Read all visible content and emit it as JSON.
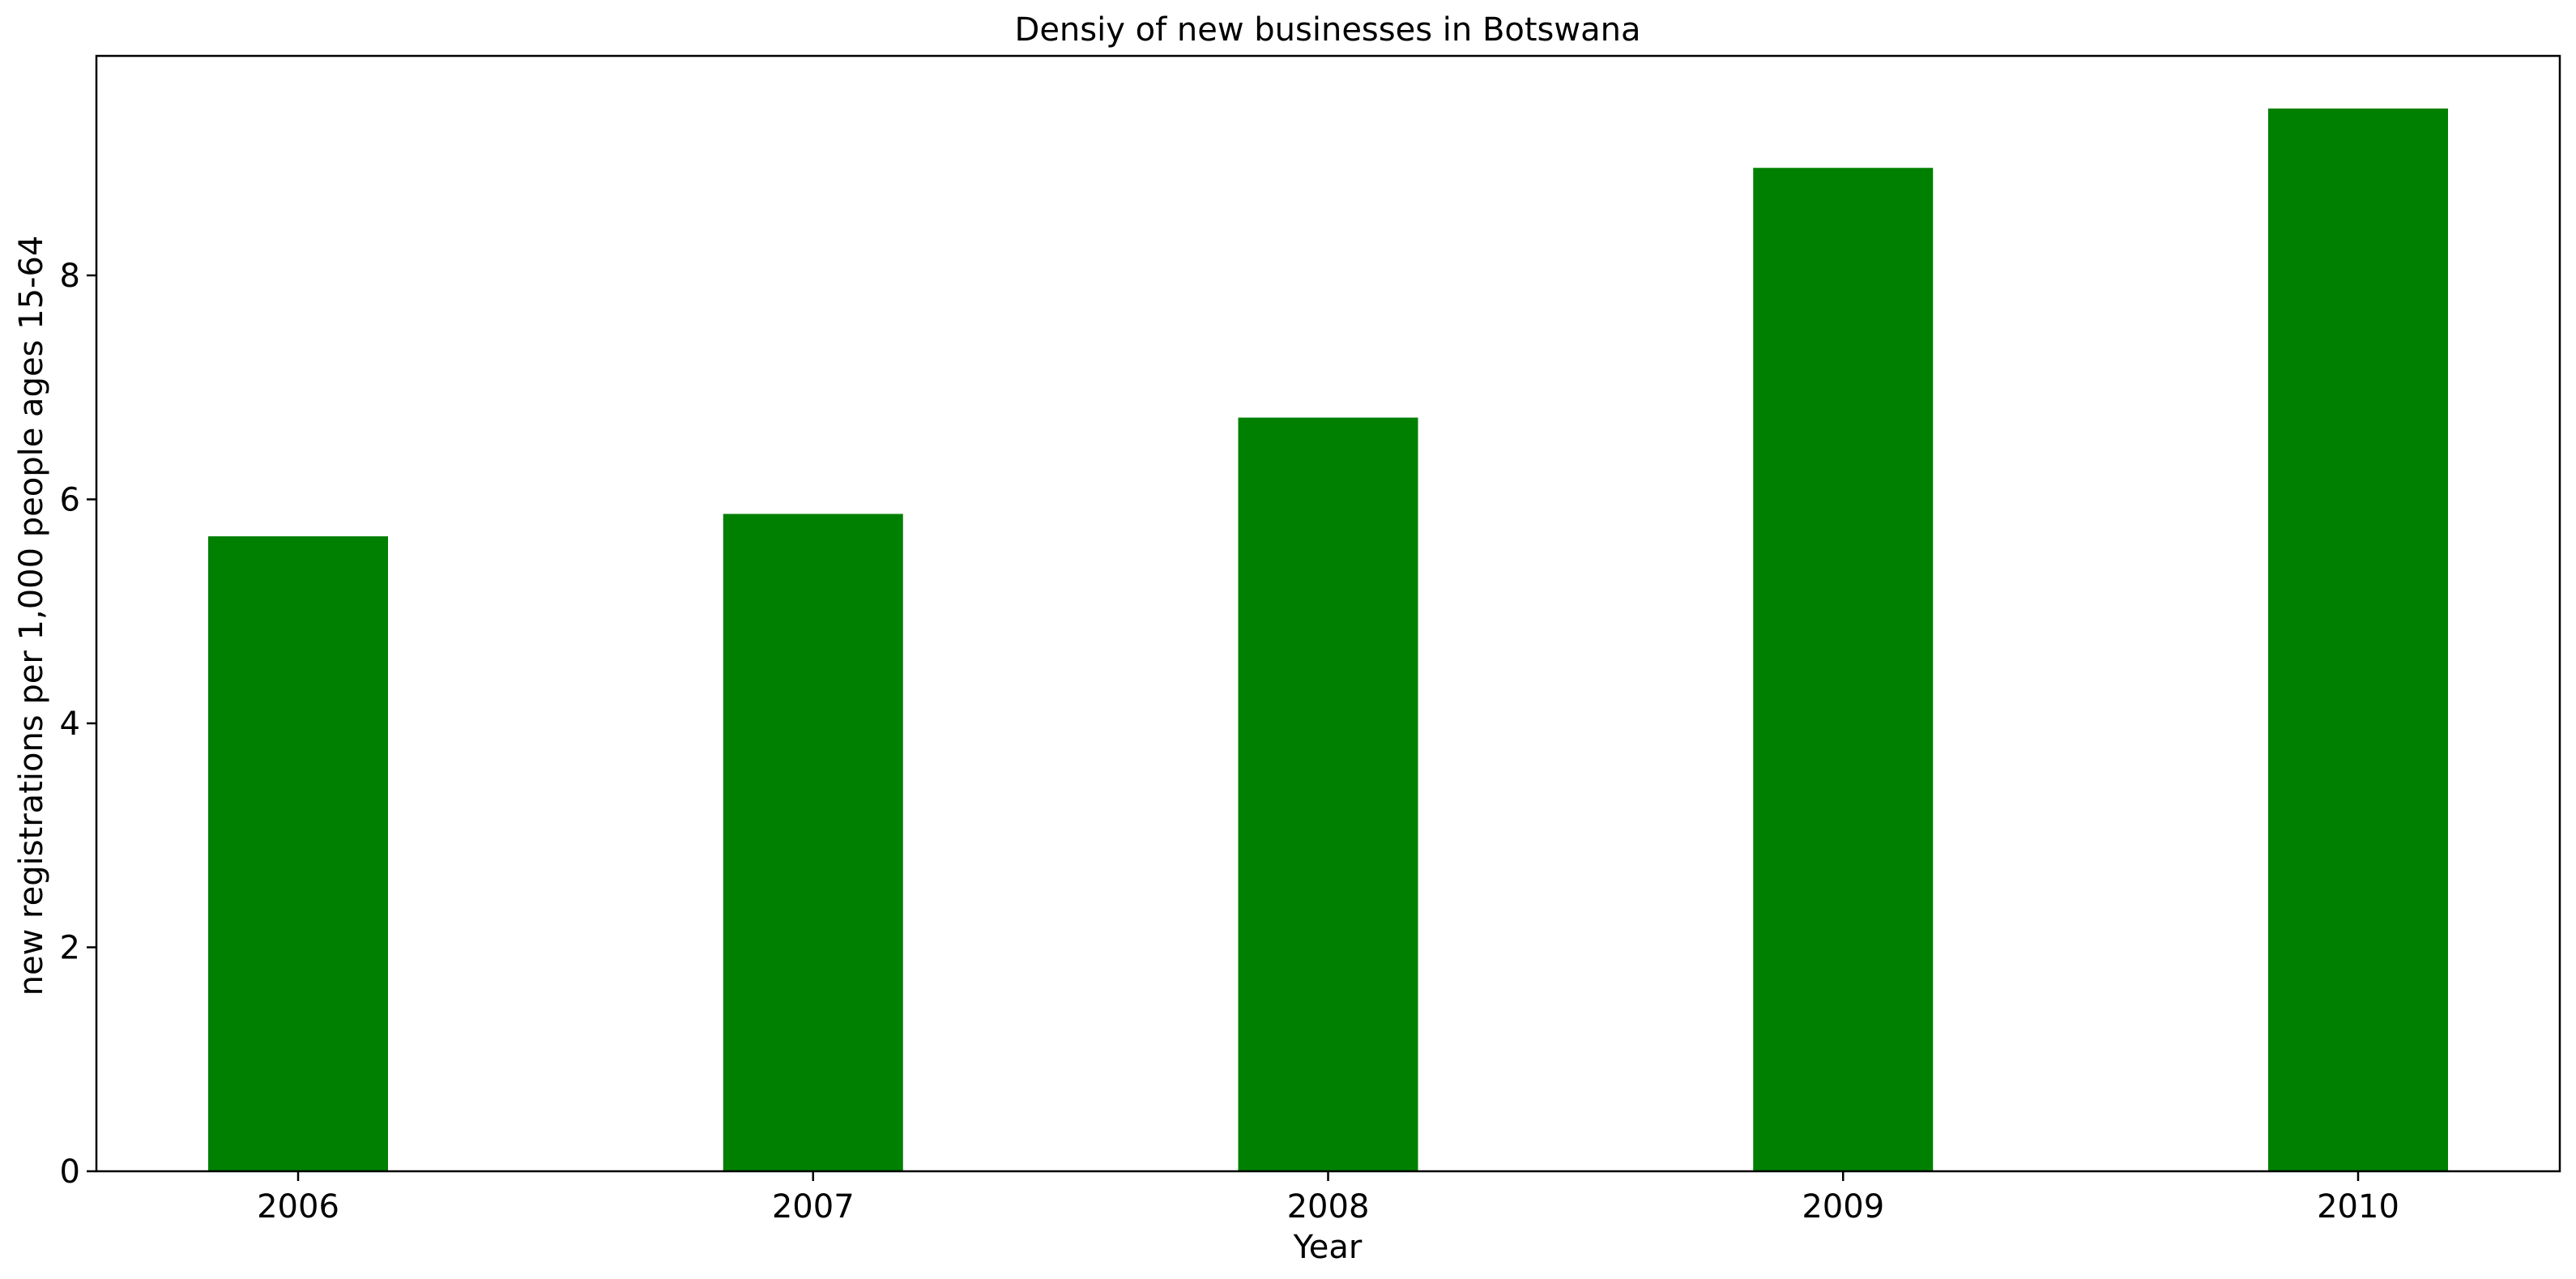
{
  "chart_data": {
    "type": "bar",
    "title": "Densiy of new businesses in Botswana",
    "xlabel": "Year",
    "ylabel": "new registrations per 1,000 people ages 15-64",
    "categories": [
      "2006",
      "2007",
      "2008",
      "2009",
      "2010"
    ],
    "values": [
      5.67,
      5.87,
      6.73,
      8.96,
      9.49
    ],
    "ylim": [
      0,
      9.96
    ],
    "yticks": [
      0,
      2,
      4,
      6,
      8
    ],
    "grid": false,
    "colors": {
      "bar": "#008000",
      "axis": "#000000",
      "background": "#ffffff"
    }
  }
}
